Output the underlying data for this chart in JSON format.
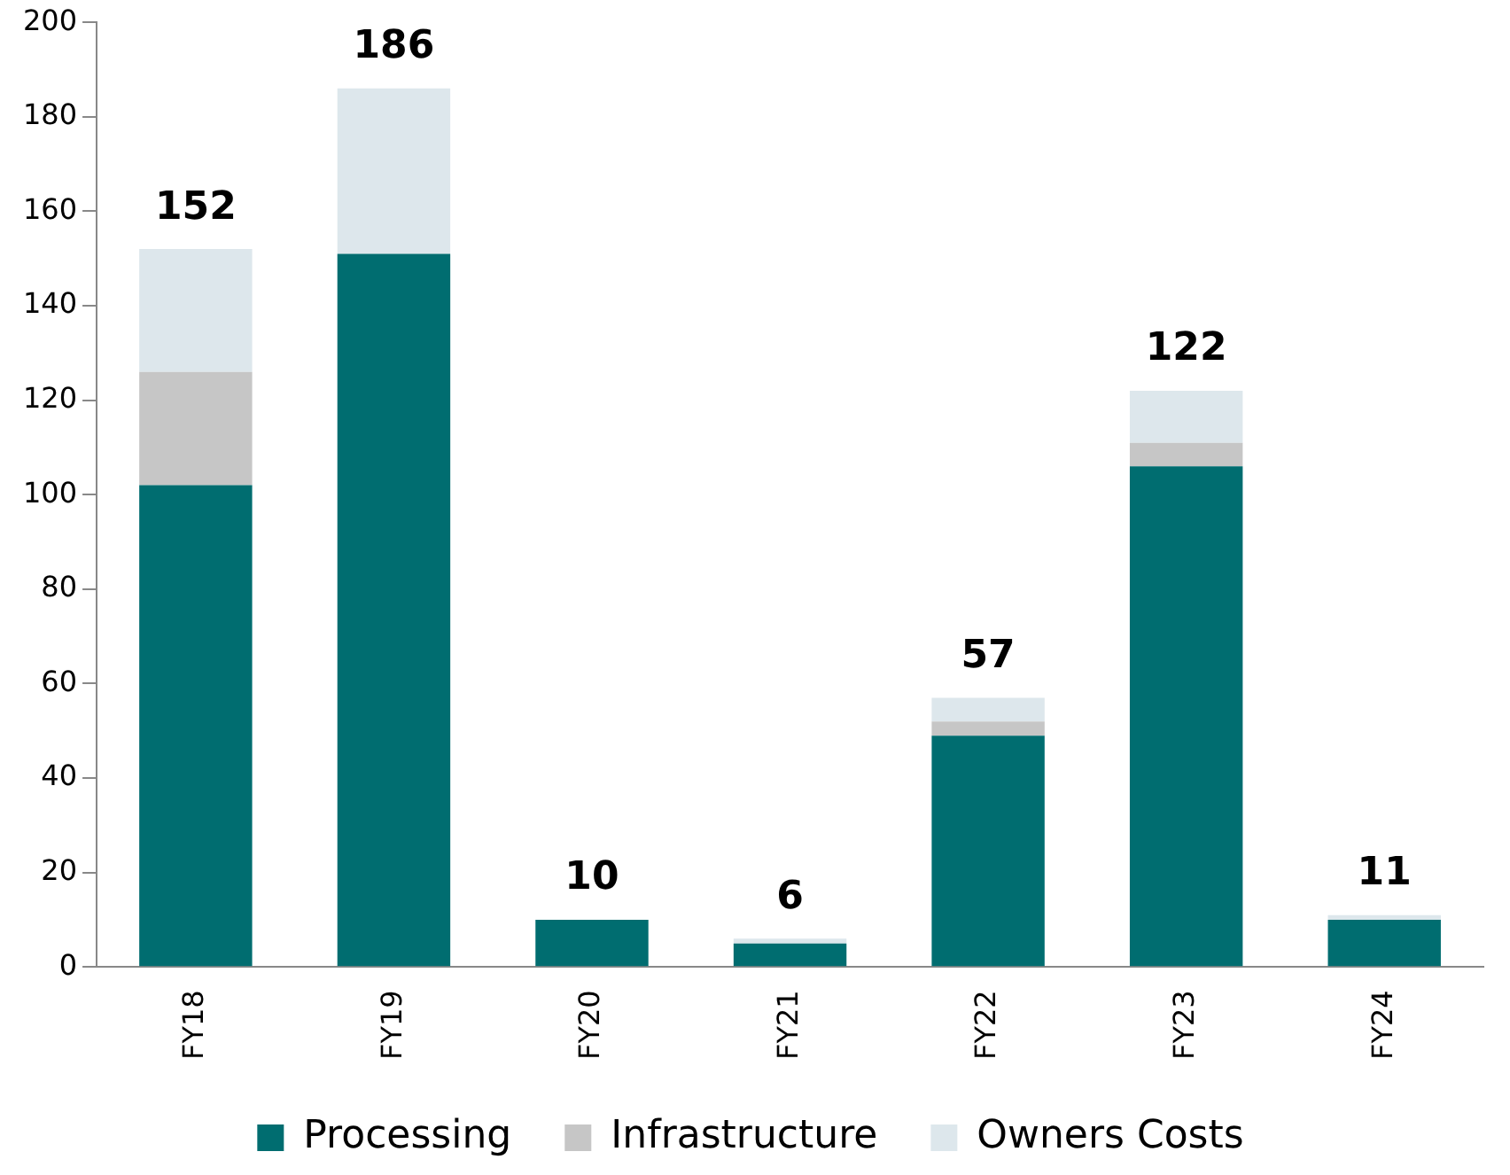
{
  "chart_data": {
    "type": "bar",
    "stacked": true,
    "categories": [
      "FY18",
      "FY19",
      "FY20",
      "FY21",
      "FY22",
      "FY23",
      "FY24"
    ],
    "series": [
      {
        "name": "Processing",
        "color": "#006d70",
        "values": [
          102,
          151,
          10,
          5,
          49,
          106,
          10
        ]
      },
      {
        "name": "Infrastructure",
        "color": "#c6c6c6",
        "values": [
          24,
          0,
          0,
          0,
          3,
          5,
          0
        ]
      },
      {
        "name": "Owners Costs",
        "color": "#dde7ec",
        "values": [
          26,
          35,
          0,
          1,
          5,
          11,
          1
        ]
      }
    ],
    "totals": [
      "152",
      "186",
      "10",
      "6",
      "57",
      "122",
      "11"
    ],
    "ylim": [
      0,
      200
    ],
    "yticks": [
      0,
      20,
      40,
      60,
      80,
      100,
      120,
      140,
      160,
      180,
      200
    ],
    "grid": false,
    "legend": "bottom"
  }
}
